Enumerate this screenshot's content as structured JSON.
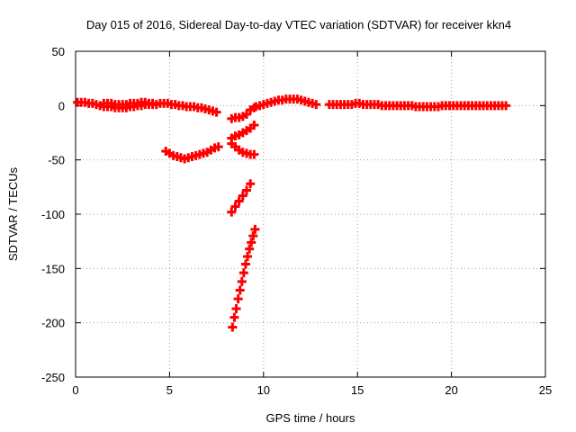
{
  "chart_data": {
    "type": "scatter",
    "title": "Day 015 of 2016, Sidereal Day-to-day VTEC variation (SDTVAR) for receiver kkn4",
    "xlabel": "GPS time / hours",
    "ylabel": "SDTVAR / TECUs",
    "xlim": [
      0,
      25
    ],
    "ylim": [
      -250,
      50
    ],
    "x_ticks": [
      0,
      5,
      10,
      15,
      20,
      25
    ],
    "y_ticks": [
      -250,
      -200,
      -150,
      -100,
      -50,
      0,
      50
    ],
    "grid": true,
    "marker": "plus",
    "color": "#ff0000",
    "series": [
      {
        "x": [
          0.1,
          0.3,
          0.5,
          0.7,
          0.9,
          1.1,
          1.3,
          1.5,
          1.7,
          1.9,
          2.1,
          2.3,
          2.5,
          2.7,
          2.9,
          3.1,
          3.3,
          3.5,
          3.7,
          3.9,
          4.1,
          4.3,
          4.5,
          4.7,
          4.9,
          5.1,
          5.3,
          5.5,
          5.7,
          5.9,
          6.1,
          6.3,
          6.5,
          6.7,
          6.9,
          7.1,
          7.3,
          7.5
        ],
        "y": [
          3,
          3,
          3,
          2,
          2,
          1,
          0,
          -1,
          -1,
          -1,
          -2,
          -2,
          -2,
          -2,
          -1,
          -1,
          0,
          0,
          1,
          1,
          1,
          1,
          2,
          2,
          2,
          1,
          1,
          0,
          0,
          -1,
          -1,
          -1,
          -2,
          -2,
          -3,
          -4,
          -5,
          -6
        ]
      },
      {
        "x": [
          1.5,
          1.7,
          1.9,
          2.1,
          2.3,
          2.5,
          2.7,
          2.9,
          3.1,
          3.3,
          3.5,
          3.7,
          3.9,
          4.1
        ],
        "y": [
          2,
          2,
          2,
          1,
          1,
          1,
          1,
          2,
          2,
          2,
          3,
          3,
          2,
          2
        ]
      },
      {
        "x": [
          4.8,
          5.0,
          5.2,
          5.4,
          5.6,
          5.8,
          6.0,
          6.2,
          6.4,
          6.6,
          6.8,
          7.0,
          7.2,
          7.4,
          7.6
        ],
        "y": [
          -42,
          -44,
          -46,
          -47,
          -48,
          -49,
          -48,
          -47,
          -46,
          -45,
          -44,
          -43,
          -41,
          -39,
          -38
        ]
      },
      {
        "x": [
          8.3,
          8.5,
          8.7,
          8.9,
          9.1,
          9.3,
          9.5
        ],
        "y": [
          -12,
          -11,
          -11,
          -10,
          -8,
          -4,
          -2
        ]
      },
      {
        "x": [
          8.3,
          8.5,
          8.7,
          8.9,
          9.1,
          9.3,
          9.5
        ],
        "y": [
          -30,
          -28,
          -27,
          -25,
          -23,
          -21,
          -18
        ]
      },
      {
        "x": [
          8.3,
          8.5,
          8.7,
          8.9,
          9.1,
          9.3,
          9.5
        ],
        "y": [
          -35,
          -38,
          -41,
          -43,
          -44,
          -45,
          -45
        ]
      },
      {
        "x": [
          8.3,
          8.5,
          8.7,
          8.9,
          9.1,
          9.3
        ],
        "y": [
          -98,
          -93,
          -88,
          -83,
          -78,
          -72
        ]
      },
      {
        "x": [
          8.35,
          8.45,
          8.55,
          8.65,
          8.75,
          8.85,
          8.95,
          9.05,
          9.15,
          9.25,
          9.35,
          9.45,
          9.55
        ],
        "y": [
          -204,
          -195,
          -187,
          -178,
          -170,
          -162,
          -154,
          -146,
          -139,
          -132,
          -126,
          -120,
          -114
        ]
      },
      {
        "x": [
          9.6,
          9.8,
          10.0,
          10.2,
          10.4,
          10.6,
          10.8,
          11.0,
          11.2,
          11.4,
          11.6,
          11.8,
          12.0,
          12.2,
          12.4,
          12.6,
          12.8
        ],
        "y": [
          -1,
          0,
          1,
          2,
          3,
          4,
          5,
          5,
          6,
          6,
          6,
          6,
          5,
          4,
          3,
          2,
          1
        ]
      },
      {
        "x": [
          13.5,
          13.7,
          13.9,
          14.1,
          14.3,
          14.5,
          14.7,
          14.9,
          15.1,
          15.3,
          15.5,
          15.7,
          15.9,
          16.1,
          16.3,
          16.5,
          16.7,
          16.9,
          17.1,
          17.3,
          17.5,
          17.7,
          17.9,
          18.1,
          18.3,
          18.5,
          18.7,
          18.9,
          19.1,
          19.3,
          19.5,
          19.7,
          19.9,
          20.1,
          20.3,
          20.5,
          20.7,
          20.9,
          21.1,
          21.3,
          21.5,
          21.7,
          21.9,
          22.1,
          22.3,
          22.5,
          22.7,
          22.9
        ],
        "y": [
          1,
          1,
          1,
          1,
          1,
          1,
          1,
          2,
          2,
          1,
          1,
          1,
          1,
          1,
          0,
          0,
          0,
          0,
          0,
          0,
          0,
          0,
          0,
          -1,
          -1,
          -1,
          -1,
          -1,
          -1,
          -1,
          0,
          0,
          0,
          0,
          0,
          0,
          0,
          0,
          0,
          0,
          0,
          0,
          0,
          0,
          0,
          0,
          0,
          0
        ]
      }
    ]
  }
}
